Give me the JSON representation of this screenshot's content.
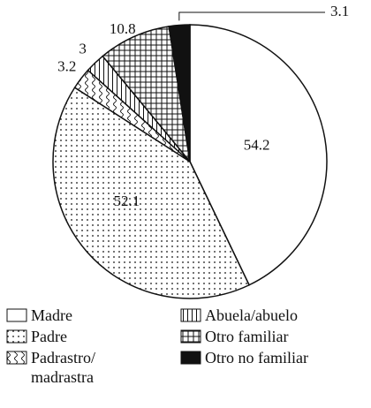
{
  "chart_data": {
    "type": "pie",
    "categories": [
      "Madre",
      "Padre",
      "Padrastro/ madrastra",
      "Abuela/abuelo",
      "Otro familiar",
      "Otro no familiar"
    ],
    "values": [
      54.2,
      52.1,
      3.2,
      3.0,
      10.8,
      3.1
    ],
    "patterns": [
      "none",
      "dots",
      "waves",
      "vertical",
      "grid",
      "solid"
    ]
  }
}
